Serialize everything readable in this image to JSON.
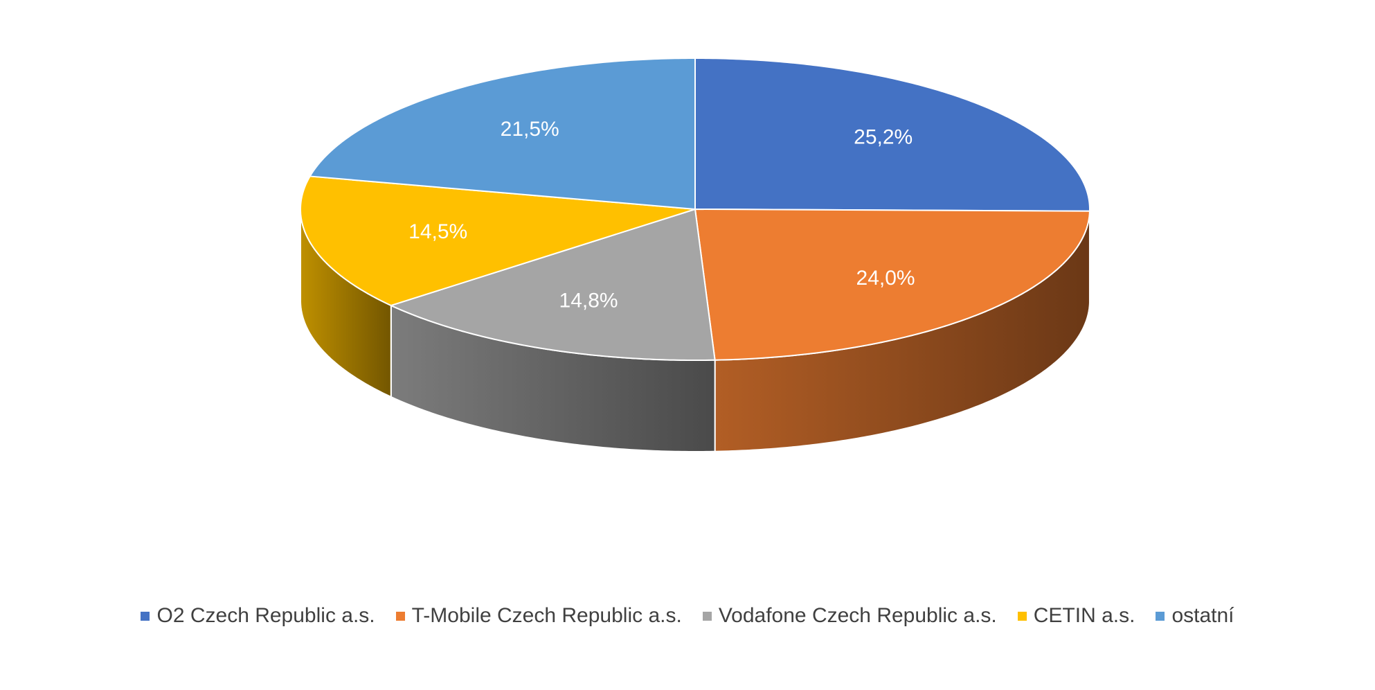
{
  "chart_data": {
    "type": "pie",
    "style": "3d",
    "categories": [
      "O2 Czech Republic a.s.",
      "T-Mobile Czech Republic a.s.",
      "Vodafone Czech Republic a.s.",
      "CETIN a.s.",
      "ostatní"
    ],
    "values": [
      25.2,
      24.0,
      14.8,
      14.5,
      21.5
    ],
    "value_labels": [
      "25,2%",
      "24,0%",
      "14,8%",
      "14,5%",
      "21,5%"
    ],
    "colors": [
      "#4472C4",
      "#ED7D31",
      "#A5A5A5",
      "#FFC000",
      "#5B9BD5"
    ],
    "title": "",
    "legend_position": "bottom",
    "data_labels_inside": true
  }
}
